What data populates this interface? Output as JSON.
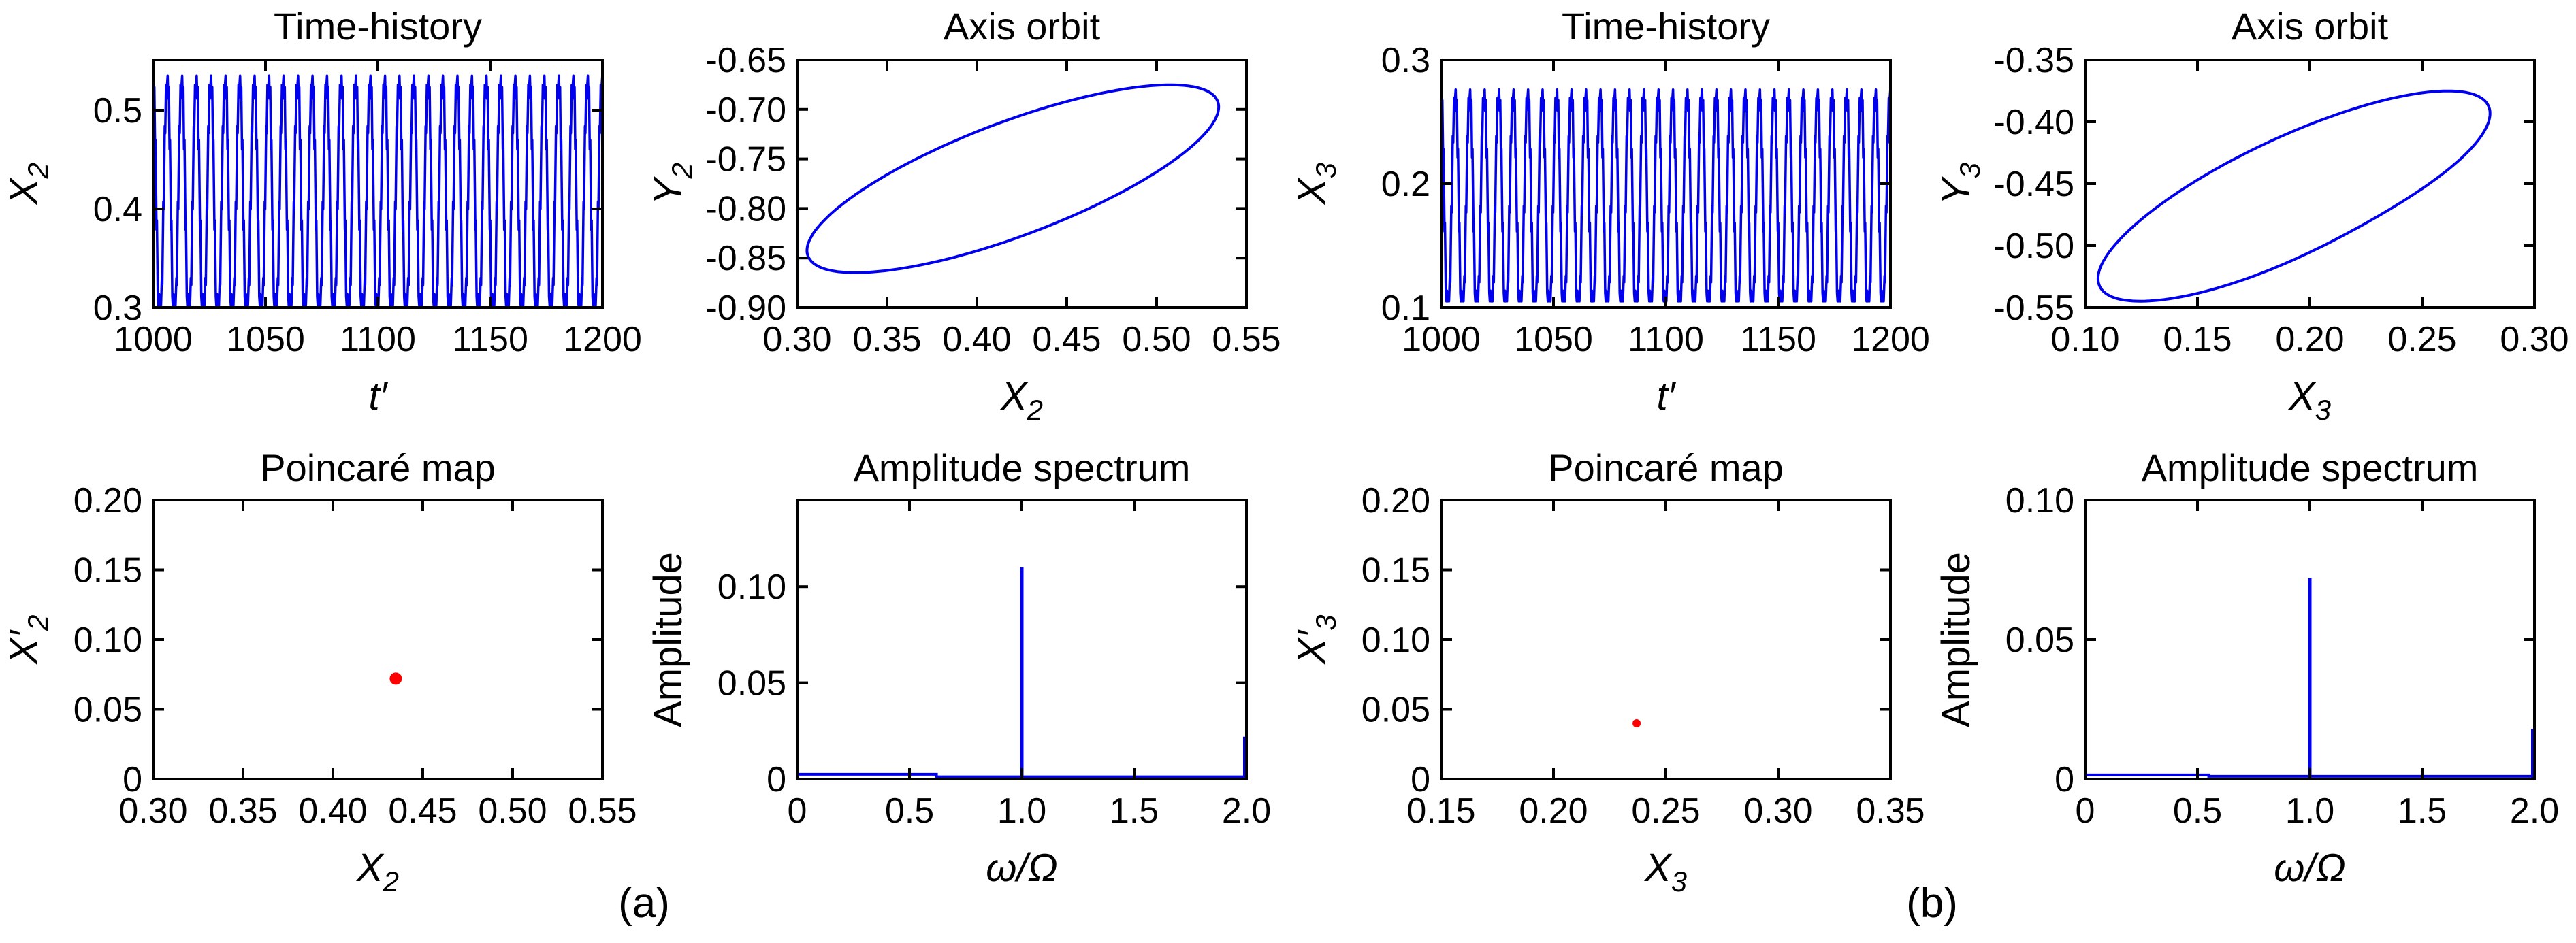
{
  "figure": {
    "kind": "matlab-style multipanel dynamics figure",
    "captions": {
      "a": "(a)",
      "b": "(b)"
    },
    "colors": {
      "series_line": "#0000EE",
      "poincare_point": "#FF0000",
      "axis": "#000000",
      "text": "#000000",
      "background": "#FFFFFF"
    }
  },
  "chart_data": [
    {
      "id": "a-time-history",
      "group": "a",
      "row": 1,
      "col": 0,
      "type": "line",
      "title": "Time-history",
      "xlabel": {
        "base": "t′",
        "italic": true
      },
      "ylabel": {
        "base": "X",
        "sub": "2",
        "italic": true
      },
      "xlim": [
        1000,
        1200
      ],
      "ylim": [
        0.3,
        0.551
      ],
      "x_ticks": {
        "values": [
          1000,
          1050,
          1100,
          1150,
          1200
        ],
        "labels": [
          "1000",
          "1050",
          "1100",
          "1150",
          "1200"
        ]
      },
      "y_ticks": {
        "values": [
          0.3,
          0.4,
          0.5
        ],
        "labels": [
          "0.3",
          "0.4",
          "0.5"
        ]
      },
      "series": {
        "kind": "waveform",
        "period": 6.45,
        "cycles": 31,
        "value_min": 0.302,
        "value_max": 0.535,
        "cycle_profile": [
          [
            0.0,
            1.0
          ],
          [
            0.04,
            0.9
          ],
          [
            0.08,
            0.95
          ],
          [
            0.13,
            0.68
          ],
          [
            0.16,
            0.72
          ],
          [
            0.23,
            0.33
          ],
          [
            0.26,
            0.37
          ],
          [
            0.32,
            0.04
          ],
          [
            0.36,
            0.0
          ],
          [
            0.4,
            0.05
          ],
          [
            0.44,
            0.0
          ],
          [
            0.49,
            0.04
          ],
          [
            0.54,
            0.0
          ],
          [
            0.6,
            0.12
          ],
          [
            0.63,
            0.09
          ],
          [
            0.7,
            0.45
          ],
          [
            0.73,
            0.42
          ],
          [
            0.8,
            0.78
          ],
          [
            0.83,
            0.75
          ],
          [
            0.89,
            0.96
          ],
          [
            0.93,
            0.93
          ],
          [
            1.0,
            1.0
          ]
        ]
      }
    },
    {
      "id": "a-axis-orbit",
      "group": "a",
      "row": 1,
      "col": 1,
      "type": "line",
      "title": "Axis orbit",
      "xlabel": {
        "base": "X",
        "sub": "2",
        "italic": true
      },
      "ylabel": {
        "base": "Y",
        "sub": "2",
        "italic": true
      },
      "xlim": [
        0.3,
        0.55
      ],
      "ylim": [
        -0.9,
        -0.65
      ],
      "x_ticks": {
        "values": [
          0.3,
          0.35,
          0.4,
          0.45,
          0.5,
          0.55
        ],
        "labels": [
          "0.30",
          "0.35",
          "0.40",
          "0.45",
          "0.50",
          "0.55"
        ]
      },
      "y_ticks": {
        "values": [
          -0.9,
          -0.85,
          -0.8,
          -0.75,
          -0.7,
          -0.65
        ],
        "labels": [
          "-0.90",
          "-0.85",
          "-0.80",
          "-0.75",
          "-0.70",
          "-0.65"
        ]
      },
      "series": {
        "kind": "orbit",
        "center": [
          0.42,
          -0.77
        ],
        "semi_major": 0.14,
        "semi_minor": 0.05,
        "rotation_deg": 38,
        "x_extent": [
          0.305,
          0.535
        ],
        "y_extent": [
          -0.868,
          -0.672
        ]
      }
    },
    {
      "id": "a-poincare-map",
      "group": "a",
      "row": 2,
      "col": 0,
      "type": "scatter",
      "title": "Poincaré map",
      "xlabel": {
        "base": "X",
        "sub": "2",
        "italic": true
      },
      "ylabel": {
        "base": "X′",
        "sub": "2",
        "italic": true
      },
      "xlim": [
        0.3,
        0.55
      ],
      "ylim": [
        0,
        0.2
      ],
      "x_ticks": {
        "values": [
          0.3,
          0.35,
          0.4,
          0.45,
          0.5,
          0.55
        ],
        "labels": [
          "0.30",
          "0.35",
          "0.40",
          "0.45",
          "0.50",
          "0.55"
        ]
      },
      "y_ticks": {
        "values": [
          0,
          0.05,
          0.1,
          0.15,
          0.2
        ],
        "labels": [
          "0",
          "0.05",
          "0.10",
          "0.15",
          "0.20"
        ]
      },
      "series": {
        "kind": "points",
        "points": [
          [
            0.435,
            0.072
          ]
        ],
        "marker_radius_px": 9
      }
    },
    {
      "id": "a-amplitude-spectrum",
      "group": "a",
      "row": 2,
      "col": 1,
      "type": "line",
      "title": "Amplitude spectrum",
      "xlabel": {
        "base": "ω/Ω",
        "italic": true
      },
      "ylabel": {
        "base": "Amplitude",
        "italic": false
      },
      "xlim": [
        0,
        2
      ],
      "ylim": [
        0,
        0.145
      ],
      "x_ticks": {
        "values": [
          0,
          0.5,
          1.0,
          1.5,
          2.0
        ],
        "labels": [
          "0",
          "0.5",
          "1.0",
          "1.5",
          "2.0"
        ]
      },
      "y_ticks": {
        "values": [
          0,
          0.05,
          0.1
        ],
        "labels": [
          "0",
          "0.05",
          "0.10"
        ]
      },
      "series": {
        "kind": "spectrum",
        "peaks": [
          {
            "x": 1.0,
            "height": 0.11
          },
          {
            "x": 2.0,
            "height": 0.022
          }
        ],
        "baseline": 0.0012,
        "noise_segment": {
          "from": 0,
          "to": 0.62,
          "height": 0.0025
        }
      }
    },
    {
      "id": "b-time-history",
      "group": "b",
      "row": 1,
      "col": 0,
      "type": "line",
      "title": "Time-history",
      "xlabel": {
        "base": "t′",
        "italic": true
      },
      "ylabel": {
        "base": "X",
        "sub": "3",
        "italic": true
      },
      "xlim": [
        1000,
        1200
      ],
      "ylim": [
        0.1,
        0.3
      ],
      "x_ticks": {
        "values": [
          1000,
          1050,
          1100,
          1150,
          1200
        ],
        "labels": [
          "1000",
          "1050",
          "1100",
          "1150",
          "1200"
        ]
      },
      "y_ticks": {
        "values": [
          0.1,
          0.2,
          0.3
        ],
        "labels": [
          "0.1",
          "0.2",
          "0.3"
        ]
      },
      "series": {
        "kind": "waveform",
        "period": 6.45,
        "cycles": 31,
        "value_min": 0.105,
        "value_max": 0.276,
        "cycle_profile": [
          [
            0.0,
            1.0
          ],
          [
            0.04,
            0.9
          ],
          [
            0.08,
            0.95
          ],
          [
            0.13,
            0.68
          ],
          [
            0.16,
            0.72
          ],
          [
            0.23,
            0.33
          ],
          [
            0.26,
            0.37
          ],
          [
            0.32,
            0.04
          ],
          [
            0.36,
            0.0
          ],
          [
            0.4,
            0.05
          ],
          [
            0.44,
            0.0
          ],
          [
            0.49,
            0.04
          ],
          [
            0.54,
            0.0
          ],
          [
            0.6,
            0.12
          ],
          [
            0.63,
            0.09
          ],
          [
            0.7,
            0.45
          ],
          [
            0.73,
            0.42
          ],
          [
            0.8,
            0.78
          ],
          [
            0.83,
            0.75
          ],
          [
            0.89,
            0.96
          ],
          [
            0.93,
            0.93
          ],
          [
            1.0,
            1.0
          ]
        ]
      }
    },
    {
      "id": "b-axis-orbit",
      "group": "b",
      "row": 1,
      "col": 1,
      "type": "line",
      "title": "Axis orbit",
      "xlabel": {
        "base": "X",
        "sub": "3",
        "italic": true
      },
      "ylabel": {
        "base": "Y",
        "sub": "3",
        "italic": true
      },
      "xlim": [
        0.1,
        0.3
      ],
      "ylim": [
        -0.55,
        -0.35
      ],
      "x_ticks": {
        "values": [
          0.1,
          0.15,
          0.2,
          0.25,
          0.3
        ],
        "labels": [
          "0.10",
          "0.15",
          "0.20",
          "0.25",
          "0.30"
        ]
      },
      "y_ticks": {
        "values": [
          -0.55,
          -0.5,
          -0.45,
          -0.4,
          -0.35
        ],
        "labels": [
          "-0.55",
          "-0.50",
          "-0.45",
          "-0.40",
          "-0.35"
        ]
      },
      "series": {
        "kind": "orbit",
        "center": [
          0.193,
          -0.46
        ],
        "semi_major": 0.115,
        "semi_minor": 0.04,
        "rotation_deg": 44,
        "notch": {
          "angle_deg": 275,
          "width_deg": 22,
          "depth": 0.05
        },
        "x_extent": [
          0.106,
          0.28
        ],
        "y_extent": [
          -0.548,
          -0.373
        ]
      }
    },
    {
      "id": "b-poincare-map",
      "group": "b",
      "row": 2,
      "col": 0,
      "type": "scatter",
      "title": "Poincaré map",
      "xlabel": {
        "base": "X",
        "sub": "3",
        "italic": true
      },
      "ylabel": {
        "base": "X′",
        "sub": "3",
        "italic": true
      },
      "xlim": [
        0.15,
        0.35
      ],
      "ylim": [
        0,
        0.2
      ],
      "x_ticks": {
        "values": [
          0.15,
          0.2,
          0.25,
          0.3,
          0.35
        ],
        "labels": [
          "0.15",
          "0.20",
          "0.25",
          "0.30",
          "0.35"
        ]
      },
      "y_ticks": {
        "values": [
          0,
          0.05,
          0.1,
          0.15,
          0.2
        ],
        "labels": [
          "0",
          "0.05",
          "0.10",
          "0.15",
          "0.20"
        ]
      },
      "series": {
        "kind": "points",
        "points": [
          [
            0.237,
            0.04
          ]
        ],
        "marker_radius_px": 6
      }
    },
    {
      "id": "b-amplitude-spectrum",
      "group": "b",
      "row": 2,
      "col": 1,
      "type": "line",
      "title": "Amplitude spectrum",
      "xlabel": {
        "base": "ω/Ω",
        "italic": true
      },
      "ylabel": {
        "base": "Amplitude",
        "italic": false
      },
      "xlim": [
        0,
        2
      ],
      "ylim": [
        0,
        0.1
      ],
      "x_ticks": {
        "values": [
          0,
          0.5,
          1.0,
          1.5,
          2.0
        ],
        "labels": [
          "0",
          "0.5",
          "1.0",
          "1.5",
          "2.0"
        ]
      },
      "y_ticks": {
        "values": [
          0,
          0.05,
          0.1
        ],
        "labels": [
          "0",
          "0.05",
          "0.10"
        ]
      },
      "series": {
        "kind": "spectrum",
        "peaks": [
          {
            "x": 1.0,
            "height": 0.072
          },
          {
            "x": 2.0,
            "height": 0.018
          }
        ],
        "baseline": 0.001,
        "noise_segment": {
          "from": 0,
          "to": 0.55,
          "height": 0.0015
        }
      }
    }
  ]
}
